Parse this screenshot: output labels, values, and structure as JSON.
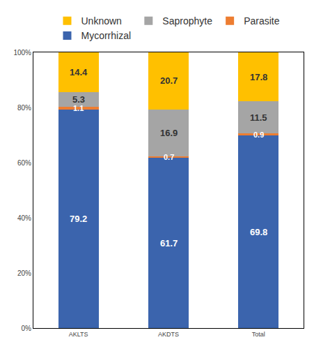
{
  "chart_data": {
    "type": "bar",
    "stacked": true,
    "categories": [
      "AKLTS",
      "AKDTS",
      "Total"
    ],
    "series": [
      {
        "name": "Mycorrhizal",
        "color": "#3B64AD",
        "values": [
          79.2,
          61.7,
          69.8
        ]
      },
      {
        "name": "Parasite",
        "color": "#ED7D31",
        "values": [
          1.1,
          0.7,
          0.9
        ]
      },
      {
        "name": "Saprophyte",
        "color": "#A5A5A5",
        "values": [
          5.3,
          16.9,
          11.5
        ]
      },
      {
        "name": "Unknown",
        "color": "#FFC000",
        "values": [
          14.4,
          20.7,
          17.8
        ]
      }
    ],
    "ylim": [
      0,
      100
    ],
    "yticks": [
      {
        "value": 0,
        "label": "0%"
      },
      {
        "value": 20,
        "label": "20%"
      },
      {
        "value": 40,
        "label": "40%"
      },
      {
        "value": 60,
        "label": "60%"
      },
      {
        "value": 80,
        "label": "80%"
      },
      {
        "value": 100,
        "label": "100%"
      }
    ],
    "grid": false,
    "legend": "top",
    "data_labels": true
  }
}
